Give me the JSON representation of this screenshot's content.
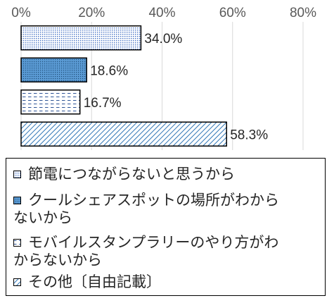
{
  "chart_data": {
    "type": "bar",
    "orientation": "horizontal",
    "xlim": [
      0,
      80
    ],
    "ticks": [
      "0%",
      "20%",
      "40%",
      "60%",
      "80%"
    ],
    "grid": true,
    "legend_position": "bottom",
    "categories": [
      "節電につながらないと思うから",
      "クールシェアスポットの場所がわからないから",
      "モバイルスタンプラリーのやり方がわからないから",
      "その他〔自由記載〕"
    ],
    "values": [
      34.0,
      18.6,
      16.7,
      58.3
    ],
    "value_labels": [
      "34.0%",
      "18.6%",
      "16.7%",
      "58.3%"
    ],
    "colors": [
      "#ffffff",
      "#5b9bd5",
      "#ffffff",
      "#ffffff"
    ],
    "patterns": [
      "dots-dense",
      "dots-blue",
      "dashes",
      "diagonal"
    ],
    "legend_lines": [
      [
        "節電につながらないと思うから"
      ],
      [
        "クールシェアスポットの場所がわから",
        "ないから"
      ],
      [
        "モバイルスタンプラリーのやり方がわ",
        "からないから"
      ],
      [
        "その他〔自由記載〕"
      ]
    ]
  }
}
